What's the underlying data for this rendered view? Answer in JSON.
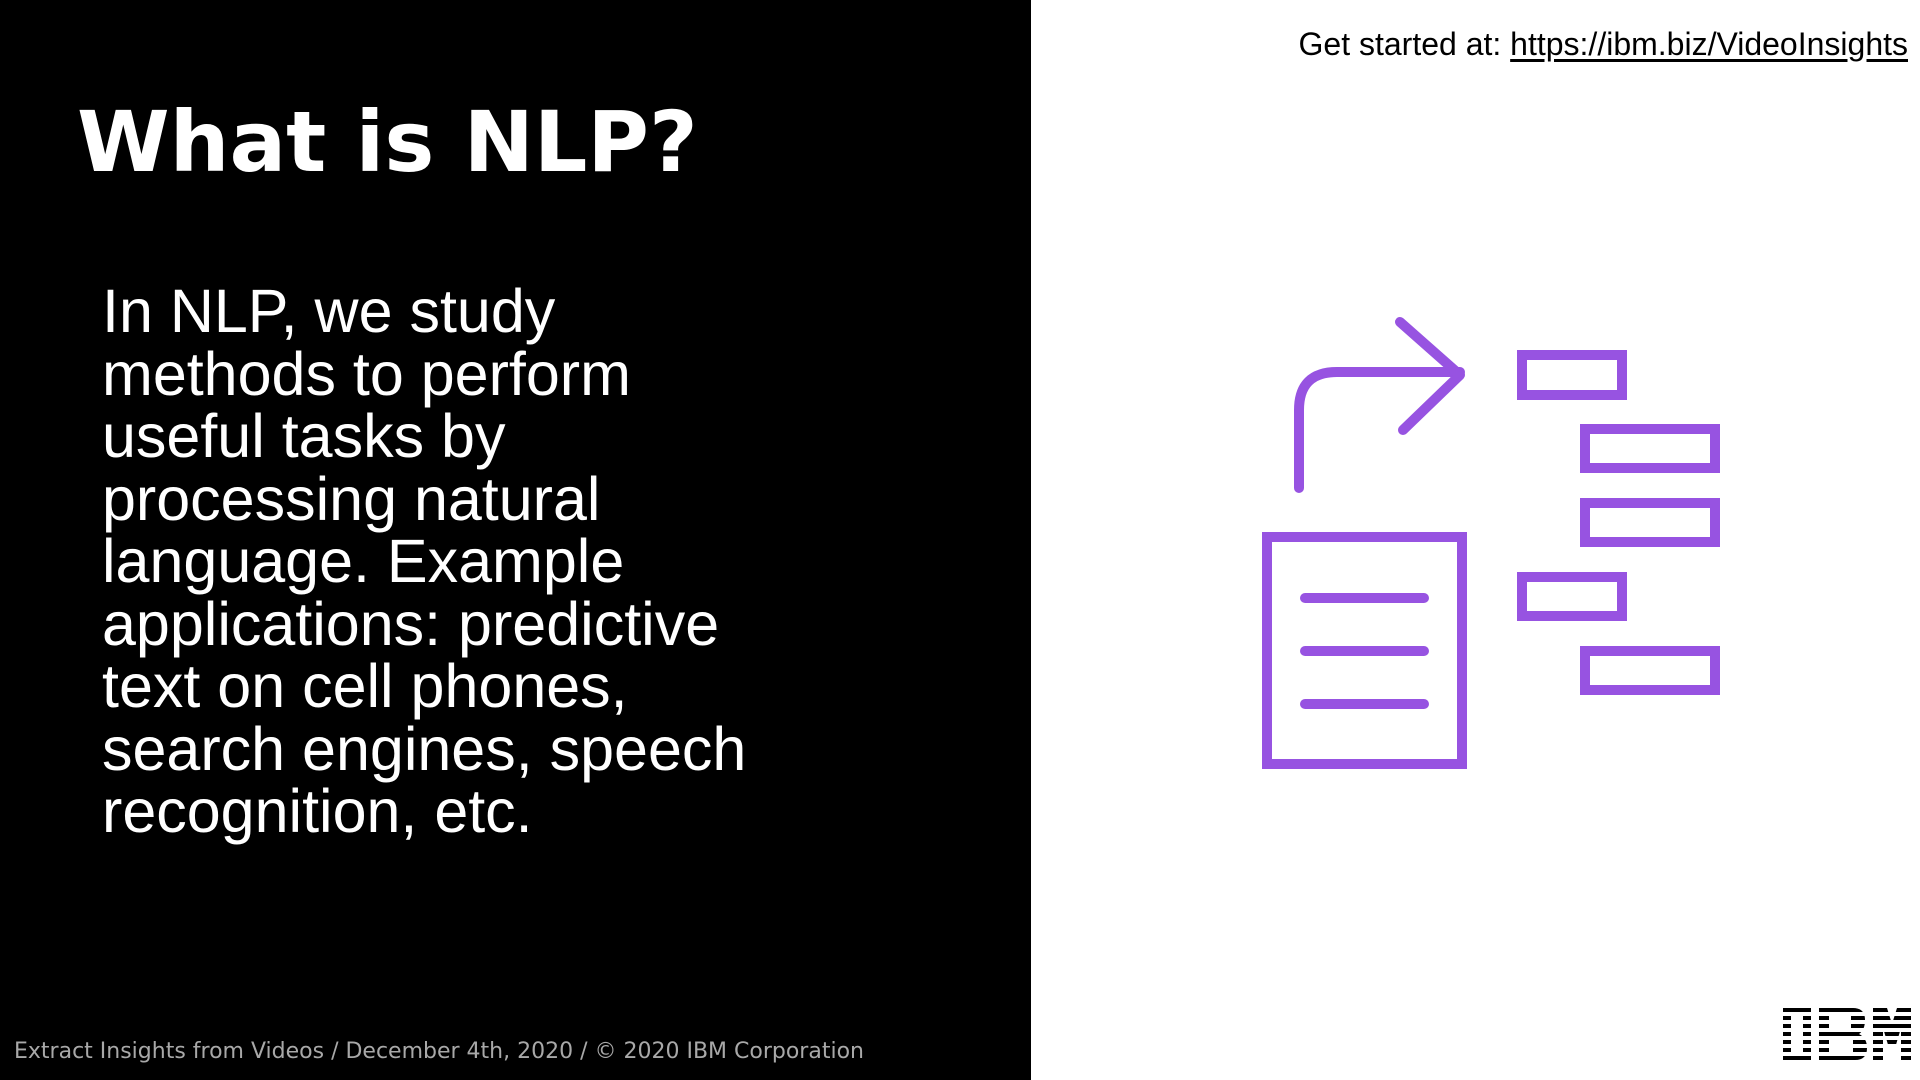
{
  "slide": {
    "title": "What is NLP?",
    "body_lines": [
      "In NLP, we study",
      "methods to perform",
      "useful tasks by",
      "processing natural",
      "language. Example",
      "applications: predictive",
      "text on cell phones,",
      "search engines, speech",
      "recognition, etc."
    ],
    "footer": "Extract Insights from Videos / December 4th, 2020 / © 2020 IBM Corporation",
    "get_started": {
      "label": "Get started at: ",
      "link": "https://ibm.biz/VideoInsights"
    },
    "logo": {
      "text": "IBM",
      "icon": "ibm-logo"
    },
    "illustration": {
      "icon": "document-to-structured-data-icon",
      "color": "#9753e1"
    }
  },
  "colors": {
    "left_background": "#000000",
    "right_background": "#ffffff",
    "title_text": "#ffffff",
    "body_text": "#ffffff",
    "footer_text": "#a8a8a8",
    "accent": "#9753e1"
  }
}
